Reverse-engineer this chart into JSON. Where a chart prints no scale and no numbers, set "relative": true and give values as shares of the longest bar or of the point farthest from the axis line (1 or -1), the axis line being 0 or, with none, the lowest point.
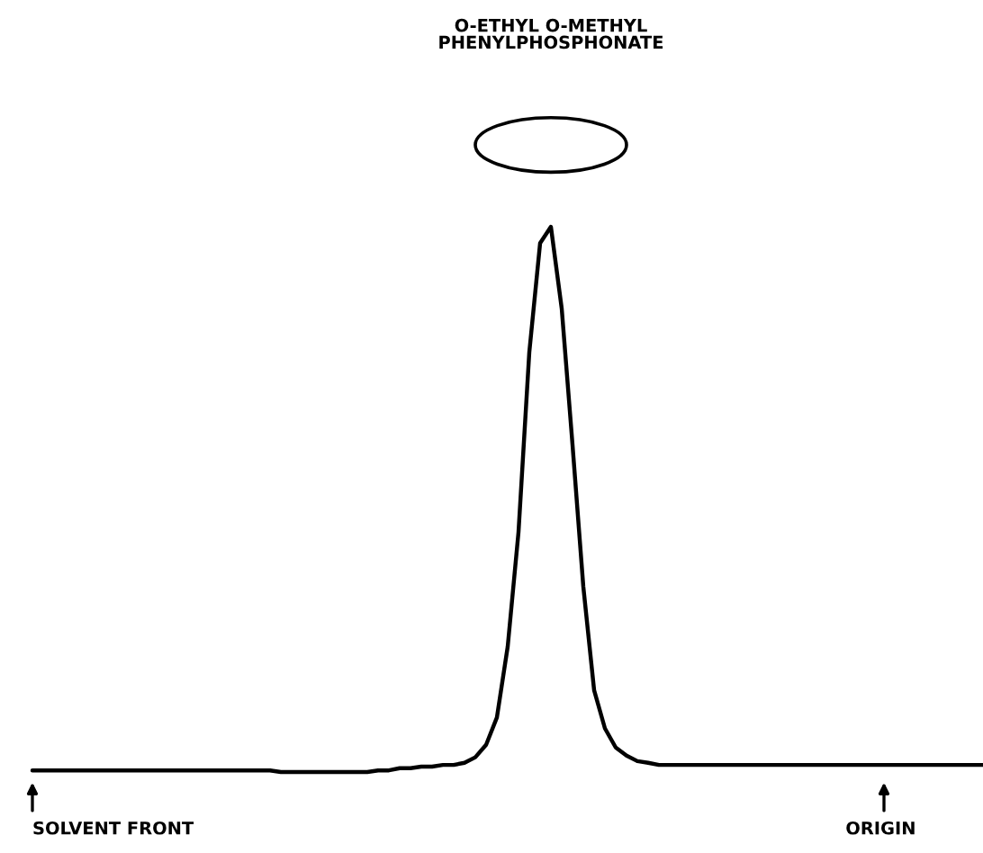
{
  "chart_data": {
    "type": "line",
    "relative": true,
    "title": "O-ETHYL O-METHYL\nPHENYLPHOSPHONATE",
    "color": "#000000",
    "categories": [
      null,
      null,
      null,
      null,
      null,
      null,
      null,
      null,
      null,
      null,
      null,
      null,
      null,
      null,
      null,
      null,
      null,
      null,
      null,
      null,
      null,
      null,
      null,
      null,
      null,
      null,
      null,
      null,
      null,
      null,
      null,
      null,
      null,
      null,
      null,
      null,
      null,
      null,
      null,
      null,
      null,
      null,
      null,
      null,
      null,
      null,
      null,
      null,
      null,
      null,
      null,
      null,
      null,
      null,
      null,
      null,
      null,
      null,
      null,
      null,
      null,
      null,
      null,
      null,
      null,
      null,
      null,
      null,
      null,
      null,
      null,
      null,
      null,
      null,
      null,
      null,
      null,
      null,
      null,
      null,
      null,
      null,
      null,
      null,
      null,
      null,
      null,
      null,
      null
    ],
    "values": [
      0.003,
      0.003,
      0.003,
      0.003,
      0.003,
      0.003,
      0.003,
      0.003,
      0.003,
      0.003,
      0.003,
      0.003,
      0.003,
      0.003,
      0.003,
      0.003,
      0.003,
      0.003,
      0.003,
      0.003,
      0.003,
      0.003,
      0.003,
      0,
      0,
      0,
      0,
      0,
      0,
      0,
      0,
      0,
      0.003,
      0.003,
      0.007,
      0.007,
      0.01,
      0.01,
      0.013,
      0.013,
      0.017,
      0.027,
      0.05,
      0.1,
      0.23,
      0.44,
      0.77,
      0.97,
      1.0,
      0.85,
      0.6,
      0.34,
      0.15,
      0.08,
      0.045,
      0.03,
      0.02,
      0.017,
      0.013,
      0.013,
      0.013,
      0.013,
      0.013,
      0.013,
      0.013,
      0.013,
      0.013,
      0.013,
      0.013,
      0.013,
      0.013,
      0.013,
      0.013,
      0.013,
      0.013,
      0.013,
      0.013,
      0.013,
      0.013,
      0.013,
      0.013,
      0.013,
      0.013,
      0.013,
      0.013,
      0.013,
      0.013,
      0.013,
      0.013
    ],
    "annotations": [
      "SOLVENT FRONT",
      "ORIGIN"
    ]
  }
}
